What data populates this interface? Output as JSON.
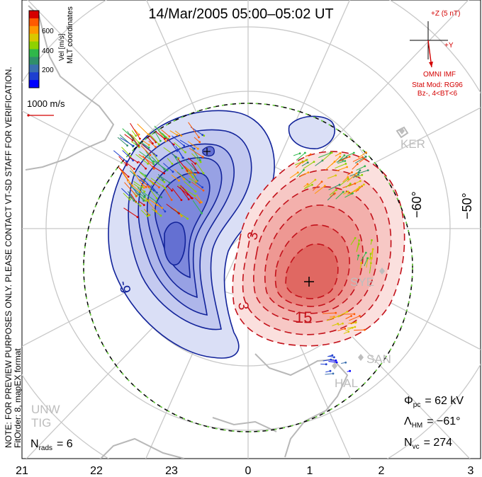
{
  "title": "14/Mar/2005 05:00–05:02 UT",
  "notice": "NOTE: FOR PREVIEW PURPOSES ONLY. PLEASE CONTACT VT-SD STAFF FOR VERIFICATION.",
  "fitorder": "FitOrder: 8, mapEX format",
  "colorbar": {
    "label_vertical": "MLT coordinates",
    "label_vel": "Vel [m/s]",
    "ticks": [
      "600",
      "400",
      "200"
    ],
    "colors": [
      "#d40000",
      "#ff5a00",
      "#ff9900",
      "#d9c800",
      "#8fd100",
      "#2fb84a",
      "#2f8f6a",
      "#3a6fb0",
      "#1e3fd0",
      "#0000ff"
    ]
  },
  "vector_scale_label": "1000 m/s",
  "imf": {
    "z_label": "+Z (5 nT)",
    "y_label": "+Y",
    "source": "OMNI IMF",
    "model": "Stat Mod: RG96",
    "condition": "Bz-, 4<BT<6"
  },
  "stats": {
    "phi_label": "Φ",
    "phi_sub": "pc",
    "phi_value": "= 62 kV",
    "lambda_label": "Λ",
    "lambda_sub": "HM",
    "lambda_value": "= −61°",
    "nvc_label": "N",
    "nvc_sub": "vc",
    "nvc_value": "= 274",
    "nrads_label": "N",
    "nrads_sub": "rads",
    "nrads_value": "= 6"
  },
  "mlt_ticks": [
    "21",
    "22",
    "23",
    "0",
    "1",
    "2",
    "3"
  ],
  "lat_labels": [
    "−60°",
    "−50°"
  ],
  "radar_sites": [
    "KER",
    "SYE",
    "SAN",
    "HAL",
    "UNW",
    "TIG"
  ],
  "contours": {
    "negative_label": "-9",
    "positive_labels": [
      "3",
      "3",
      "15"
    ]
  },
  "colors": {
    "negative_fill": "#3b47d6",
    "positive_fill": "#e8504a",
    "negative_line": "#12239a",
    "positive_line": "#c3121b",
    "grid": "#c8c8c8",
    "land": "#b8b8b8",
    "hmb_dash": "#6ddc3c"
  }
}
